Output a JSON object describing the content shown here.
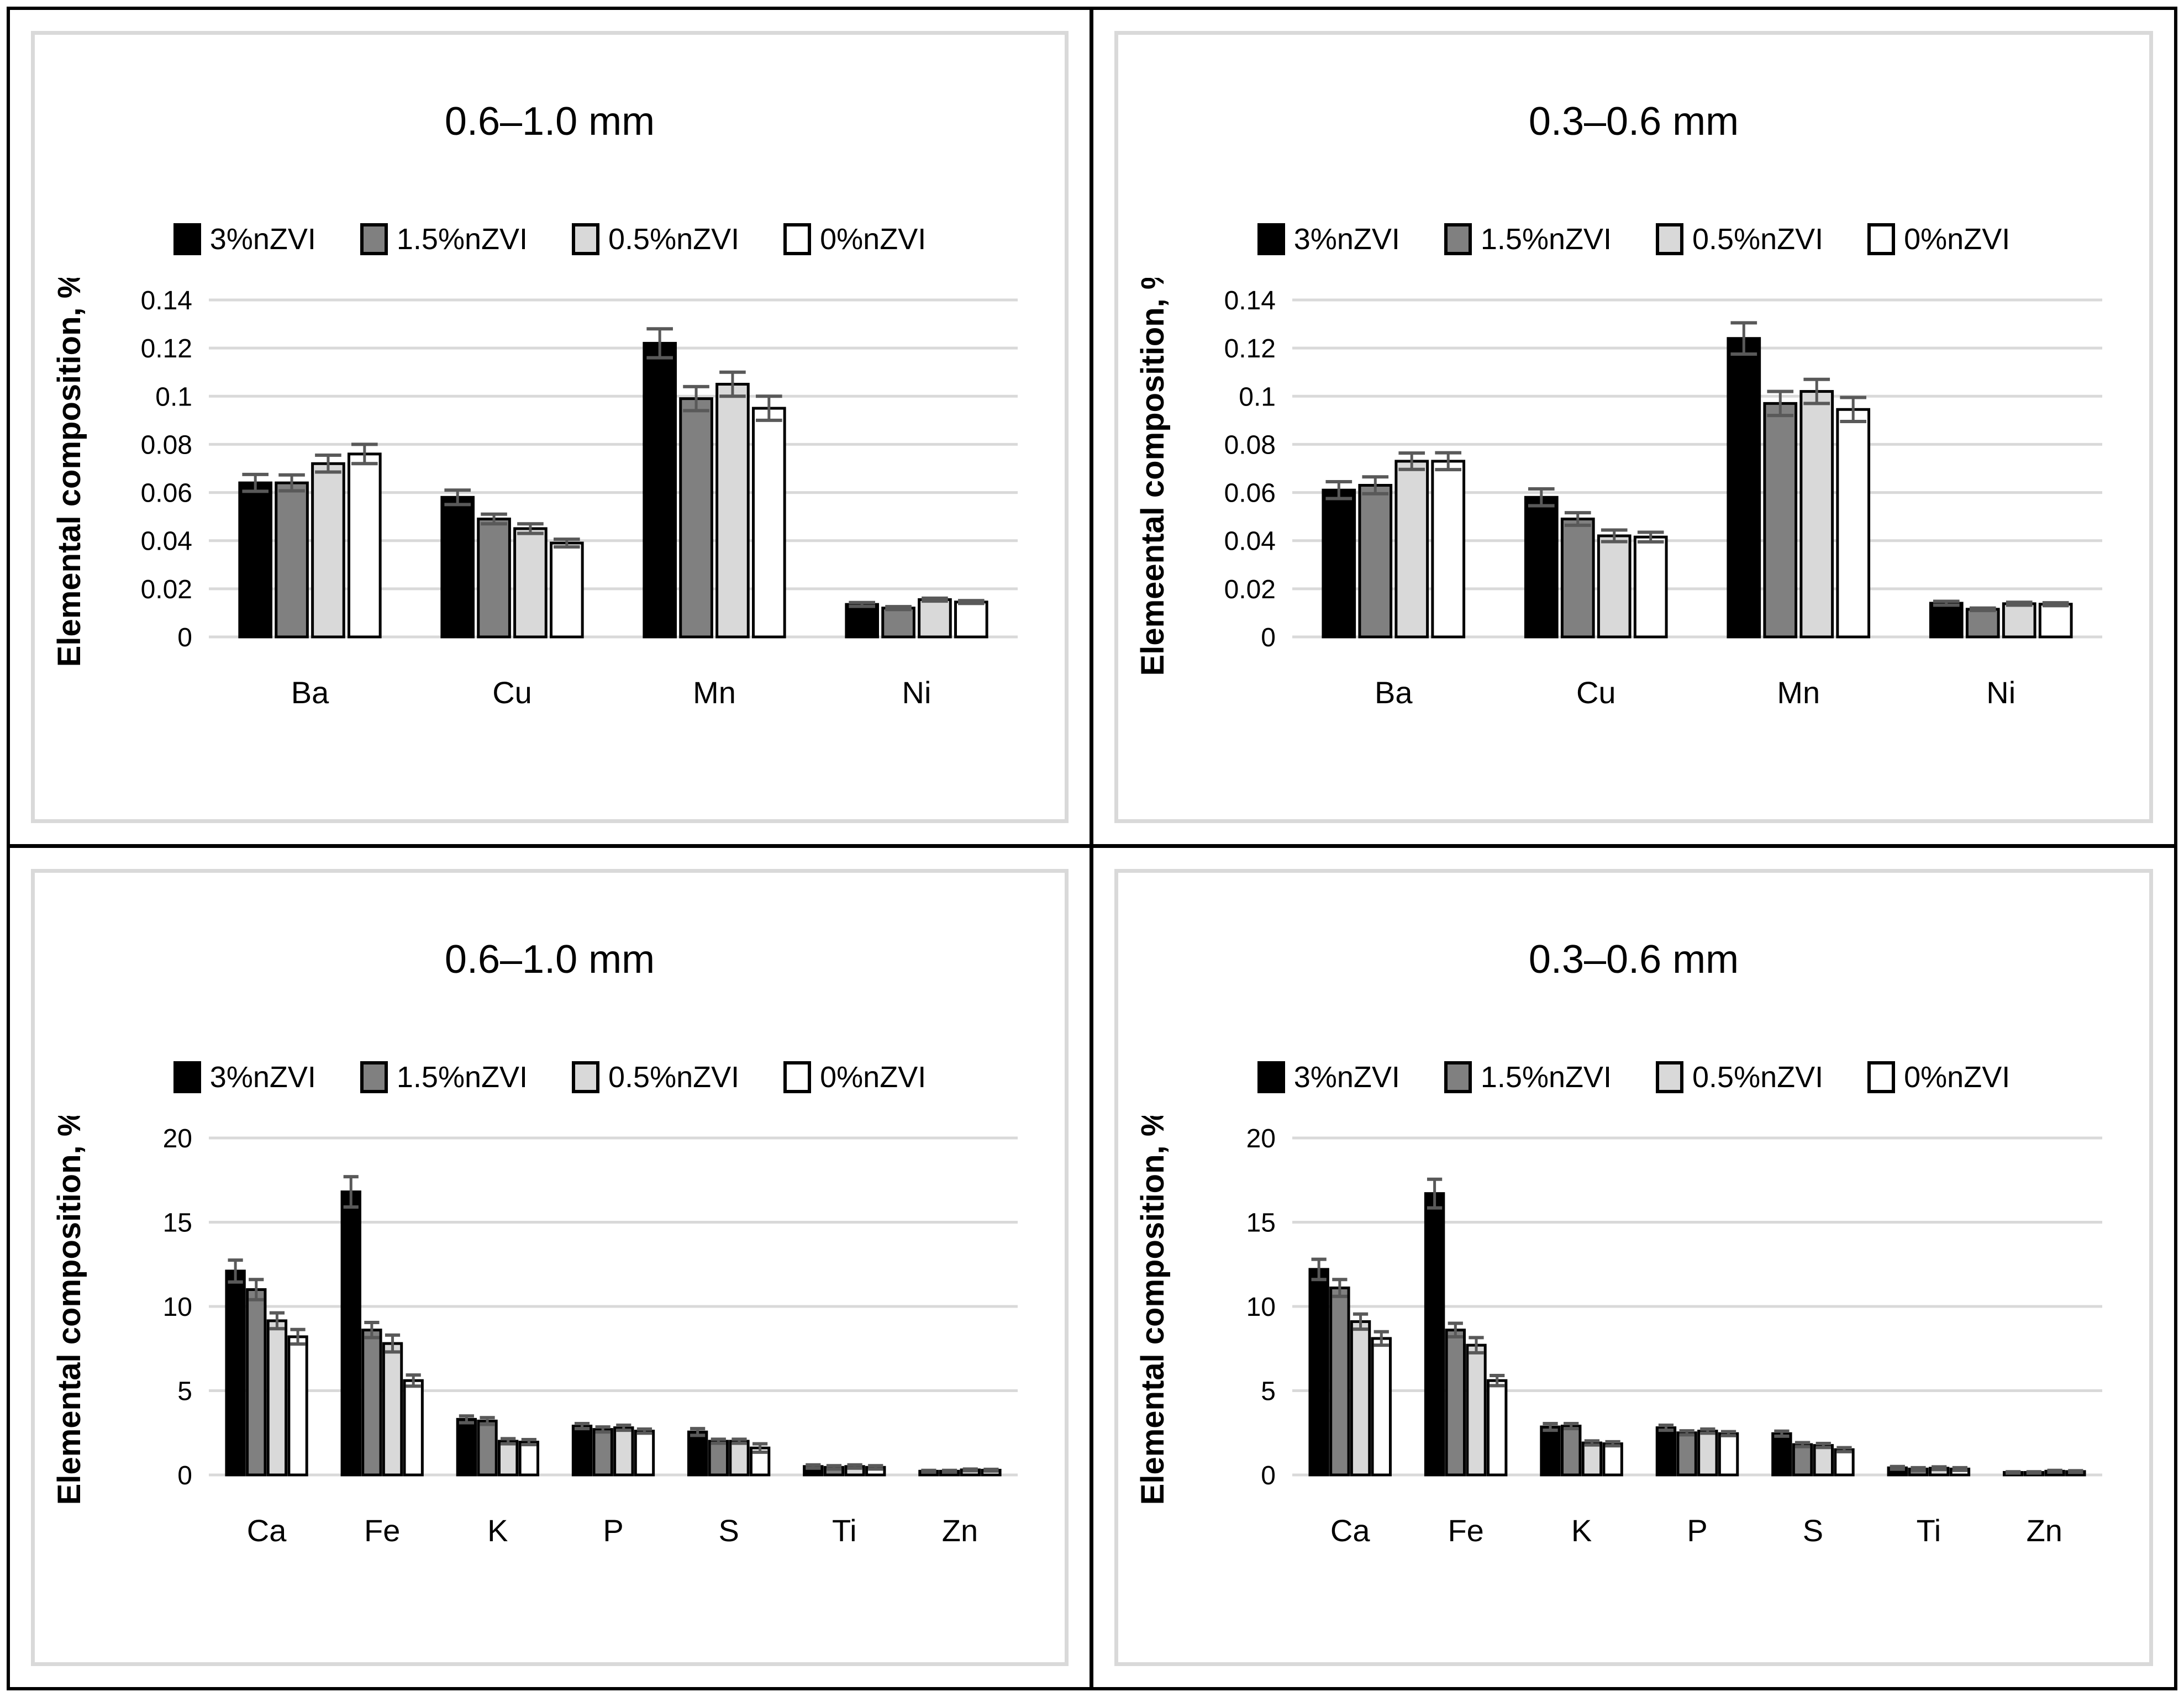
{
  "figure": {
    "grid": "2x2",
    "frame_color": "#000000",
    "panel_border_color": "#d9d9d9",
    "background": "#ffffff"
  },
  "colors": {
    "series": [
      "#000000",
      "#808080",
      "#d9d9d9",
      "#ffffff"
    ],
    "bar_stroke": "#000000",
    "error_bar": "#595959",
    "gridline": "#d9d9d9",
    "text": "#000000"
  },
  "chart_data": [
    {
      "panel": "top-left",
      "type": "bar",
      "title": "0.6–1.0 mm",
      "ylabel": "Elemental composition, %",
      "xlabel": "",
      "categories": [
        "Ba",
        "Cu",
        "Mn",
        "Ni"
      ],
      "ylim": [
        0,
        0.14
      ],
      "ytick_step": 0.02,
      "yticks": [
        "0",
        "0.02",
        "0.04",
        "0.06",
        "0.08",
        "0.1",
        "0.12",
        "0.14"
      ],
      "grid": true,
      "legend_position": "top",
      "legend": [
        "3%nZVI",
        "1.5%nZVI",
        "0.5%nZVI",
        "0%nZVI"
      ],
      "series": [
        {
          "name": "3%nZVI",
          "values": [
            0.064,
            0.058,
            0.122,
            0.0135
          ],
          "errors": [
            0.0035,
            0.003,
            0.006,
            0.0008
          ]
        },
        {
          "name": "1.5%nZVI",
          "values": [
            0.064,
            0.049,
            0.099,
            0.012
          ],
          "errors": [
            0.0033,
            0.002,
            0.005,
            0.0006
          ]
        },
        {
          "name": "0.5%nZVI",
          "values": [
            0.072,
            0.045,
            0.105,
            0.0155
          ],
          "errors": [
            0.0035,
            0.002,
            0.005,
            0.0006
          ]
        },
        {
          "name": "0%nZVI",
          "values": [
            0.076,
            0.039,
            0.095,
            0.0145
          ],
          "errors": [
            0.004,
            0.0016,
            0.005,
            0.0006
          ]
        }
      ]
    },
    {
      "panel": "top-right",
      "type": "bar",
      "title": "0.3–0.6 mm",
      "ylabel": "Elemeental composition, %",
      "xlabel": "",
      "categories": [
        "Ba",
        "Cu",
        "Mn",
        "Ni"
      ],
      "ylim": [
        0,
        0.14
      ],
      "ytick_step": 0.02,
      "yticks": [
        "0",
        "0.02",
        "0.04",
        "0.06",
        "0.08",
        "0.1",
        "0.12",
        "0.14"
      ],
      "grid": true,
      "legend_position": "top",
      "legend": [
        "3%nZVI",
        "1.5%nZVI",
        "0.5%nZVI",
        "0%nZVI"
      ],
      "series": [
        {
          "name": "3%nZVI",
          "values": [
            0.061,
            0.058,
            0.124,
            0.014
          ],
          "errors": [
            0.0035,
            0.0035,
            0.0065,
            0.0008
          ]
        },
        {
          "name": "1.5%nZVI",
          "values": [
            0.063,
            0.049,
            0.097,
            0.0115
          ],
          "errors": [
            0.0035,
            0.0026,
            0.005,
            0.0005
          ]
        },
        {
          "name": "0.5%nZVI",
          "values": [
            0.073,
            0.042,
            0.102,
            0.0138
          ],
          "errors": [
            0.0034,
            0.0024,
            0.005,
            0.0006
          ]
        },
        {
          "name": "0%nZVI",
          "values": [
            0.073,
            0.0415,
            0.0945,
            0.0136
          ],
          "errors": [
            0.0035,
            0.002,
            0.005,
            0.0006
          ]
        }
      ]
    },
    {
      "panel": "bottom-left",
      "type": "bar",
      "title": "0.6–1.0 mm",
      "ylabel": "Elemental composition, %",
      "xlabel": "",
      "categories": [
        "Ca",
        "Fe",
        "K",
        "P",
        "S",
        "Ti",
        "Zn"
      ],
      "ylim": [
        0,
        20
      ],
      "ytick_step": 5,
      "yticks": [
        "0",
        "5",
        "10",
        "15",
        "20"
      ],
      "grid": true,
      "legend_position": "top",
      "legend": [
        "3%nZVI",
        "1.5%nZVI",
        "0.5%nZVI",
        "0%nZVI"
      ],
      "series": [
        {
          "name": "3%nZVI",
          "values": [
            12.1,
            16.8,
            3.3,
            2.9,
            2.55,
            0.5,
            0.22
          ],
          "errors": [
            0.65,
            0.9,
            0.2,
            0.15,
            0.2,
            0.1,
            0.05
          ]
        },
        {
          "name": "1.5%nZVI",
          "values": [
            11.0,
            8.6,
            3.2,
            2.7,
            2.0,
            0.45,
            0.22
          ],
          "errors": [
            0.6,
            0.45,
            0.2,
            0.15,
            0.12,
            0.1,
            0.05
          ]
        },
        {
          "name": "0.5%nZVI",
          "values": [
            9.15,
            7.8,
            2.0,
            2.8,
            2.0,
            0.5,
            0.3
          ],
          "errors": [
            0.47,
            0.5,
            0.15,
            0.15,
            0.12,
            0.1,
            0.05
          ]
        },
        {
          "name": "0%nZVI",
          "values": [
            8.2,
            5.6,
            1.95,
            2.6,
            1.6,
            0.45,
            0.28
          ],
          "errors": [
            0.43,
            0.33,
            0.15,
            0.12,
            0.25,
            0.1,
            0.05
          ]
        }
      ]
    },
    {
      "panel": "bottom-right",
      "type": "bar",
      "title": "0.3–0.6 mm",
      "ylabel": "Elemental composition, %",
      "xlabel": "",
      "categories": [
        "Ca",
        "Fe",
        "K",
        "P",
        "S",
        "Ti",
        "Zn"
      ],
      "ylim": [
        0,
        20
      ],
      "ytick_step": 5,
      "yticks": [
        "0",
        "5",
        "10",
        "15",
        "20"
      ],
      "grid": true,
      "legend_position": "top",
      "legend": [
        "3%nZVI",
        "1.5%nZVI",
        "0.5%nZVI",
        "0%nZVI"
      ],
      "series": [
        {
          "name": "3%nZVI",
          "values": [
            12.2,
            16.7,
            2.85,
            2.8,
            2.45,
            0.42,
            0.15
          ],
          "errors": [
            0.6,
            0.85,
            0.2,
            0.15,
            0.15,
            0.08,
            0.04
          ]
        },
        {
          "name": "1.5%nZVI",
          "values": [
            11.1,
            8.6,
            2.9,
            2.5,
            1.8,
            0.35,
            0.15
          ],
          "errors": [
            0.5,
            0.4,
            0.15,
            0.12,
            0.12,
            0.08,
            0.04
          ]
        },
        {
          "name": "0.5%nZVI",
          "values": [
            9.1,
            7.7,
            1.9,
            2.6,
            1.75,
            0.4,
            0.22
          ],
          "errors": [
            0.45,
            0.45,
            0.12,
            0.12,
            0.12,
            0.08,
            0.05
          ]
        },
        {
          "name": "0%nZVI",
          "values": [
            8.1,
            5.6,
            1.85,
            2.45,
            1.5,
            0.35,
            0.2
          ],
          "errors": [
            0.4,
            0.3,
            0.12,
            0.12,
            0.12,
            0.08,
            0.05
          ]
        }
      ]
    }
  ]
}
